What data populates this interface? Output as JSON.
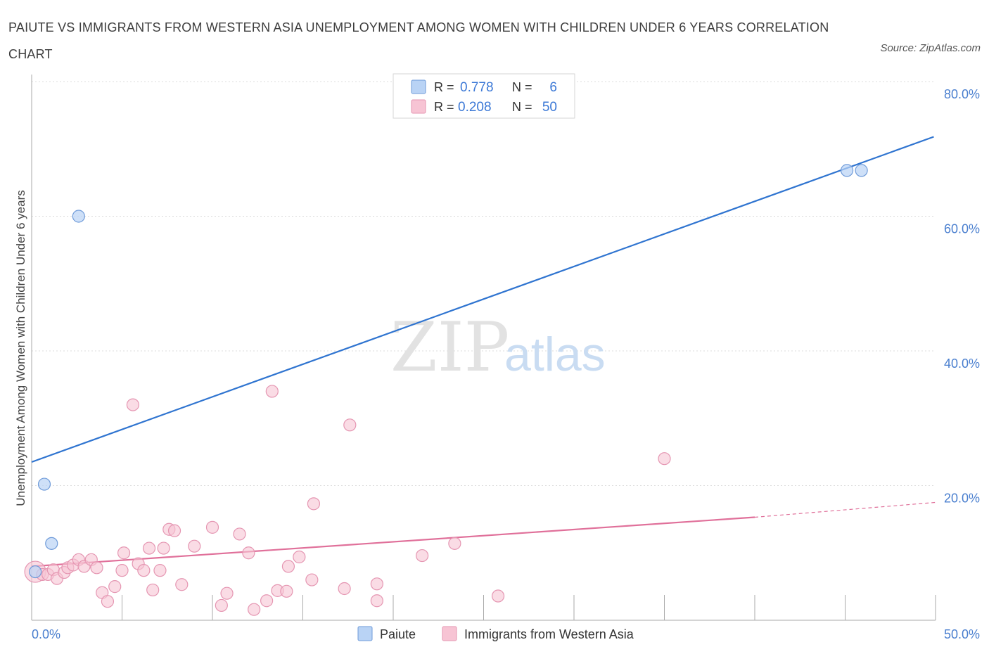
{
  "title": "PAIUTE VS IMMIGRANTS FROM WESTERN ASIA UNEMPLOYMENT AMONG WOMEN WITH CHILDREN UNDER 6 YEARS CORRELATION CHART",
  "source": "Source: ZipAtlas.com",
  "watermark": {
    "zip": "ZIP",
    "atlas": "atlas"
  },
  "colors": {
    "paiute_fill": "#b9d3f5",
    "paiute_stroke": "#6f9bd9",
    "paiute_line": "#2f74d0",
    "imm_fill": "#f7c4d4",
    "imm_stroke": "#e596b2",
    "imm_line": "#e0709a",
    "tick_text": "#4a7fcf",
    "grid": "#dddddd"
  },
  "legend": {
    "r_label": "R =",
    "n_label": "N =",
    "rows": [
      {
        "r": "0.778",
        "n": "6"
      },
      {
        "r": "0.208",
        "n": "50"
      }
    ]
  },
  "bottom_legend": [
    "Paiute",
    "Immigrants from Western Asia"
  ],
  "chart_data": {
    "type": "scatter",
    "title": "PAIUTE VS IMMIGRANTS FROM WESTERN ASIA UNEMPLOYMENT AMONG WOMEN WITH CHILDREN UNDER 6 YEARS CORRELATION CHART",
    "xlabel": "",
    "ylabel": "Unemployment Among Women with Children Under 6 years",
    "xlim": [
      0,
      50
    ],
    "ylim": [
      0,
      80
    ],
    "x_tick_labels": [
      "0.0%",
      "50.0%"
    ],
    "y_ticks": [
      20,
      40,
      60,
      80
    ],
    "y_tick_labels": [
      "20.0%",
      "40.0%",
      "60.0%",
      "80.0%"
    ],
    "grid": true,
    "legend_position": "top-center",
    "series": [
      {
        "name": "Paiute",
        "r": 0.778,
        "n": 6,
        "points": [
          [
            0.2,
            7.2
          ],
          [
            0.7,
            20.2
          ],
          [
            1.1,
            11.4
          ],
          [
            2.6,
            60.0
          ],
          [
            45.1,
            66.8
          ],
          [
            45.9,
            66.8
          ]
        ],
        "trend": {
          "x0": 0,
          "y0": 23.5,
          "x1": 49.9,
          "y1": 71.8
        }
      },
      {
        "name": "Immigrants from Western Asia",
        "r": 0.208,
        "n": 50,
        "points": [
          [
            0.2,
            7.2
          ],
          [
            0.6,
            6.8
          ],
          [
            0.9,
            6.8
          ],
          [
            1.2,
            7.5
          ],
          [
            1.4,
            6.2
          ],
          [
            1.8,
            7.1
          ],
          [
            2.0,
            7.8
          ],
          [
            2.3,
            8.2
          ],
          [
            2.6,
            9.0
          ],
          [
            2.9,
            8.0
          ],
          [
            3.3,
            9.0
          ],
          [
            3.6,
            7.8
          ],
          [
            3.9,
            4.1
          ],
          [
            4.2,
            2.8
          ],
          [
            4.6,
            5.0
          ],
          [
            5.0,
            7.4
          ],
          [
            5.1,
            10.0
          ],
          [
            5.6,
            32.0
          ],
          [
            5.9,
            8.4
          ],
          [
            6.2,
            7.4
          ],
          [
            6.5,
            10.7
          ],
          [
            6.7,
            4.5
          ],
          [
            7.1,
            7.4
          ],
          [
            7.3,
            10.7
          ],
          [
            7.6,
            13.5
          ],
          [
            7.9,
            13.3
          ],
          [
            8.3,
            5.3
          ],
          [
            9.0,
            11.0
          ],
          [
            10.0,
            13.8
          ],
          [
            10.5,
            2.2
          ],
          [
            10.8,
            4.0
          ],
          [
            11.5,
            12.8
          ],
          [
            12.0,
            10.0
          ],
          [
            12.3,
            1.6
          ],
          [
            13.0,
            2.9
          ],
          [
            13.3,
            34.0
          ],
          [
            13.6,
            4.4
          ],
          [
            14.1,
            4.3
          ],
          [
            14.2,
            8.0
          ],
          [
            14.8,
            9.4
          ],
          [
            15.5,
            6.0
          ],
          [
            15.6,
            17.3
          ],
          [
            17.3,
            4.7
          ],
          [
            17.6,
            29.0
          ],
          [
            19.1,
            5.4
          ],
          [
            19.1,
            2.9
          ],
          [
            21.6,
            9.6
          ],
          [
            23.4,
            11.4
          ],
          [
            25.8,
            3.6
          ],
          [
            35.0,
            24.0
          ]
        ],
        "trend": {
          "x0": 0,
          "y0": 8.0,
          "x1": 40.0,
          "y1": 15.3
        },
        "trend_extension": {
          "x0": 40.0,
          "y0": 15.3,
          "x1": 50.0,
          "y1": 17.5
        }
      }
    ]
  }
}
